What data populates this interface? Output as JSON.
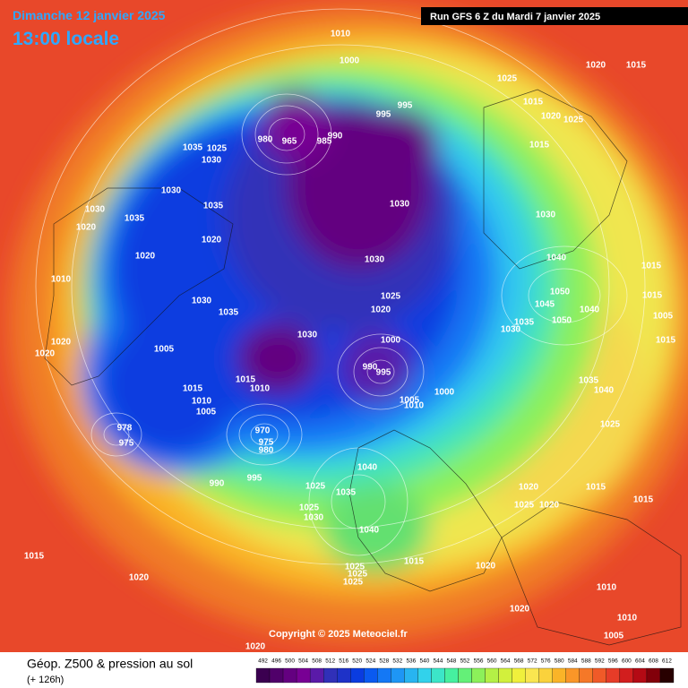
{
  "header": {
    "date": "Dimanche 12 janvier 2025",
    "time": "13:00 locale",
    "run": "Run GFS 6 Z du Mardi 7 janvier 2025"
  },
  "copyright": "Copyright © 2025 Meteociel.fr",
  "footer": {
    "title": "Géop. Z500 & pression au sol",
    "lead": "(+ 126h)"
  },
  "colorbar": {
    "levels": [
      492,
      496,
      500,
      504,
      508,
      512,
      516,
      520,
      524,
      528,
      532,
      536,
      540,
      544,
      548,
      552,
      556,
      560,
      564,
      568,
      572,
      576,
      580,
      584,
      588,
      592,
      596,
      600,
      604,
      608,
      612
    ],
    "colors": [
      "#3b0050",
      "#50006a",
      "#640080",
      "#780094",
      "#5a1aa8",
      "#3030b8",
      "#1e32c8",
      "#0a3ce0",
      "#0a5af0",
      "#1478f5",
      "#1e96f5",
      "#28b4f0",
      "#32d2eb",
      "#3ce6c8",
      "#46f0a0",
      "#64f078",
      "#8cf05a",
      "#b4f046",
      "#d2f03c",
      "#f0f03c",
      "#fae650",
      "#fad23c",
      "#fab428",
      "#fa9628",
      "#f57828",
      "#f05a28",
      "#e63c28",
      "#d21e1e",
      "#b40a14",
      "#82000a",
      "#280000"
    ]
  },
  "pressure_labels": [
    1010,
    1000,
    995,
    995,
    980,
    965,
    985,
    990,
    1035,
    1025,
    1030,
    1030,
    1035,
    1030,
    1035,
    1020,
    1020,
    1020,
    1010,
    1030,
    1035,
    1025,
    1020,
    1030,
    1000,
    990,
    995,
    1005,
    1015,
    1010,
    1015,
    1010,
    1005,
    970,
    975,
    980,
    990,
    995,
    1005,
    1010,
    1000,
    1030,
    1030,
    1030,
    1040,
    1050,
    1045,
    1050,
    1035,
    1030,
    1040,
    1020,
    1015,
    1025,
    1015,
    1020,
    1025,
    1015,
    1040,
    1035,
    1025,
    1025,
    1030,
    1040,
    1015,
    1025,
    1025,
    1025,
    1020,
    1020,
    1025,
    1020,
    1015,
    1015,
    1035,
    1040,
    1025,
    1020,
    1020,
    1015,
    1020,
    1020,
    1010,
    1010,
    1005,
    1020,
    1015,
    1015,
    1005,
    1015,
    978,
    975
  ]
}
